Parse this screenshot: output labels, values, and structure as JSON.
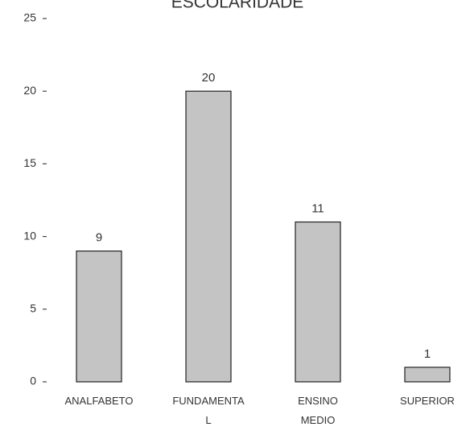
{
  "chart_data": {
    "type": "bar",
    "title": "ESCOLARIDADE",
    "categories": [
      "ANALFABETO",
      "FUNDAMENTAL",
      "ENSINO MEDIO",
      "SUPERIOR"
    ],
    "values": [
      9,
      20,
      11,
      1
    ],
    "color": "#c4c4c4",
    "ylim": [
      0,
      25
    ],
    "yticks": [
      0,
      5,
      10,
      15,
      20,
      25
    ],
    "grid": false
  }
}
